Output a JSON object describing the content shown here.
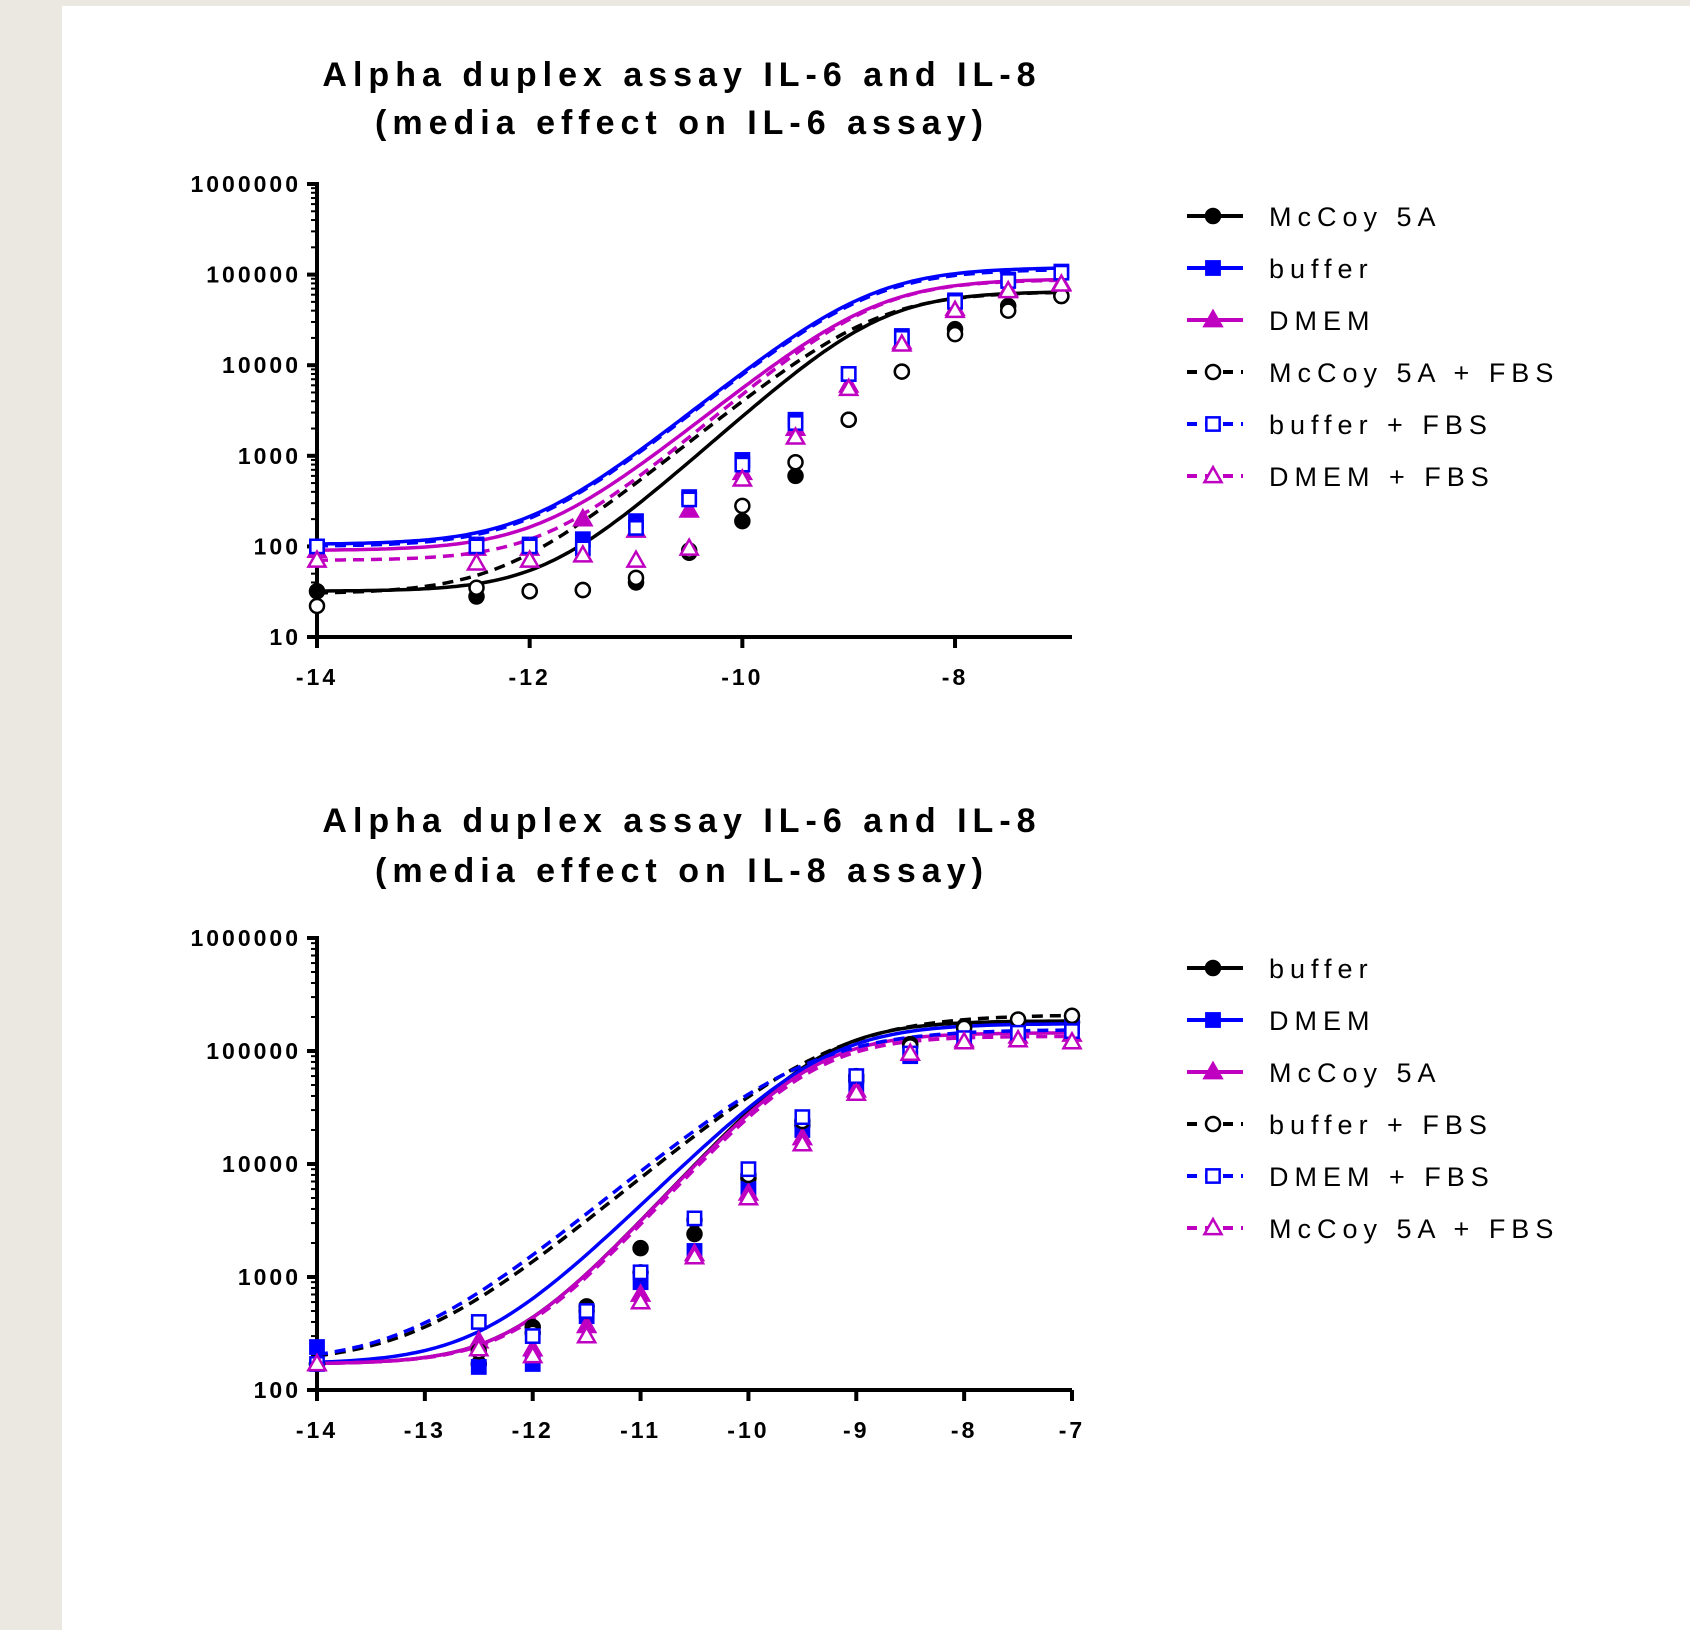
{
  "chart_data": [
    {
      "type": "line",
      "title_lines": [
        "Alpha duplex assay IL-6 and IL-8",
        "(media effect on IL-6 assay)"
      ],
      "xlabel": "",
      "ylabel": "",
      "y_scale": "log",
      "xlim": [
        -14,
        -6.9
      ],
      "ylim": [
        10,
        1000000
      ],
      "x_ticks": [
        -14,
        -12,
        -10,
        -8
      ],
      "x_tick_labels": [
        "-14",
        "-12",
        "-10",
        "-8"
      ],
      "y_ticks": [
        10,
        100,
        1000,
        10000,
        100000,
        1000000
      ],
      "y_tick_labels": [
        "10",
        "100",
        "1000",
        "10000",
        "100000",
        "1000000"
      ],
      "legend_position": "right",
      "x": [
        -14,
        -12.5,
        -12,
        -11.5,
        -11,
        -10.5,
        -10,
        -9.5,
        -9,
        -8.5,
        -8,
        -7.5,
        -7
      ],
      "series": [
        {
          "name": "McCoy 5A",
          "color": "#000000",
          "marker": "circle",
          "filled": true,
          "dashed": false,
          "values": [
            32,
            28,
            32,
            33,
            40,
            85,
            190,
            600,
            2500,
            8500,
            25000,
            45000,
            58000
          ],
          "fit": {
            "bottom": 32,
            "top": 65000,
            "logec50": -8.7,
            "hill": 1.05
          }
        },
        {
          "name": "buffer",
          "color": "#0000ff",
          "marker": "square",
          "filled": true,
          "dashed": false,
          "values": [
            100,
            105,
            105,
            120,
            190,
            350,
            900,
            2500,
            8000,
            21000,
            52000,
            88000,
            108000
          ],
          "fit": {
            "bottom": 105,
            "top": 120000,
            "logec50": -8.8,
            "hill": 0.95
          }
        },
        {
          "name": "DMEM",
          "color": "#c000c0",
          "marker": "triangle",
          "filled": true,
          "dashed": false,
          "values": [
            90,
            95,
            95,
            200,
            150,
            250,
            650,
            2000,
            6000,
            18000,
            42000,
            68000,
            80000
          ],
          "fit": {
            "bottom": 90,
            "top": 90000,
            "logec50": -8.75,
            "hill": 0.95
          }
        },
        {
          "name": "McCoy 5A + FBS",
          "color": "#000000",
          "marker": "circle",
          "filled": false,
          "dashed": true,
          "values": [
            22,
            35,
            32,
            33,
            45,
            90,
            280,
            850,
            2500,
            8500,
            22000,
            40000,
            58000
          ],
          "fit": {
            "bottom": 30,
            "top": 65000,
            "logec50": -8.75,
            "hill": 0.95
          }
        },
        {
          "name": "buffer + FBS",
          "color": "#0000ff",
          "marker": "square",
          "filled": false,
          "dashed": true,
          "values": [
            100,
            100,
            100,
            95,
            160,
            330,
            800,
            2300,
            8000,
            20000,
            50000,
            85000,
            105000
          ],
          "fit": {
            "bottom": 100,
            "top": 115000,
            "logec50": -8.8,
            "hill": 0.95
          }
        },
        {
          "name": "DMEM + FBS",
          "color": "#c000c0",
          "marker": "triangle",
          "filled": false,
          "dashed": true,
          "values": [
            70,
            65,
            70,
            80,
            70,
            95,
            550,
            1600,
            5500,
            17000,
            40000,
            66000,
            78000
          ],
          "fit": {
            "bottom": 70,
            "top": 88000,
            "logec50": -8.75,
            "hill": 1.0
          }
        }
      ]
    },
    {
      "type": "line",
      "title_lines": [
        "Alpha duplex assay IL-6 and IL-8",
        "(media effect on IL-8 assay)"
      ],
      "xlabel": "",
      "ylabel": "",
      "y_scale": "log",
      "xlim": [
        -14,
        -7
      ],
      "ylim": [
        100,
        1000000
      ],
      "x_ticks": [
        -14,
        -13,
        -12,
        -11,
        -10,
        -9,
        -8,
        -7
      ],
      "x_tick_labels": [
        "-14",
        "-13",
        "-12",
        "-11",
        "-10",
        "-9",
        "-8",
        "-7"
      ],
      "y_ticks": [
        100,
        1000,
        10000,
        100000,
        1000000
      ],
      "y_tick_labels": [
        "100",
        "1000",
        "10000",
        "100000",
        "1000000"
      ],
      "legend_position": "right",
      "x": [
        -14,
        -12.5,
        -12,
        -11.5,
        -11,
        -10.5,
        -10,
        -9.5,
        -9,
        -8.5,
        -8,
        -7.5,
        -7
      ],
      "series": [
        {
          "name": "buffer",
          "color": "#000000",
          "marker": "circle",
          "filled": true,
          "dashed": false,
          "values": [
            170,
            170,
            360,
            550,
            1800,
            2400,
            7500,
            22000,
            55000,
            115000,
            165000,
            180000,
            180000
          ],
          "fit": {
            "bottom": 170,
            "top": 185000,
            "logec50": -9.3,
            "hill": 1.05
          }
        },
        {
          "name": "DMEM",
          "color": "#0000ff",
          "marker": "square",
          "filled": true,
          "dashed": false,
          "values": [
            240,
            160,
            170,
            450,
            900,
            1700,
            6000,
            20000,
            50000,
            90000,
            145000,
            165000,
            165000
          ],
          "fit": {
            "bottom": 170,
            "top": 175000,
            "logec50": -9.3,
            "hill": 0.95
          }
        },
        {
          "name": "McCoy 5A",
          "color": "#c000c0",
          "marker": "triangle",
          "filled": true,
          "dashed": false,
          "values": [
            170,
            270,
            230,
            370,
            700,
            1600,
            5500,
            17000,
            45000,
            95000,
            125000,
            135000,
            140000
          ],
          "fit": {
            "bottom": 170,
            "top": 145000,
            "logec50": -9.4,
            "hill": 1.05
          }
        },
        {
          "name": "buffer + FBS",
          "color": "#000000",
          "marker": "circle",
          "filled": false,
          "dashed": true,
          "values": [
            170,
            220,
            320,
            500,
            1100,
            3200,
            8000,
            24000,
            60000,
            110000,
            160000,
            190000,
            205000
          ],
          "fit": {
            "bottom": 170,
            "top": 210000,
            "logec50": -9.2,
            "hill": 0.8
          }
        },
        {
          "name": "DMEM + FBS",
          "color": "#0000ff",
          "marker": "square",
          "filled": false,
          "dashed": true,
          "values": [
            170,
            400,
            300,
            500,
            1100,
            3300,
            9000,
            26000,
            60000,
            95000,
            130000,
            145000,
            150000
          ],
          "fit": {
            "bottom": 170,
            "top": 155000,
            "logec50": -9.45,
            "hill": 0.8
          }
        },
        {
          "name": "McCoy 5A + FBS",
          "color": "#c000c0",
          "marker": "triangle",
          "filled": false,
          "dashed": true,
          "values": [
            170,
            230,
            200,
            300,
            600,
            1500,
            5000,
            15000,
            42000,
            95000,
            120000,
            125000,
            120000
          ],
          "fit": {
            "bottom": 170,
            "top": 135000,
            "logec50": -9.4,
            "hill": 1.05
          }
        }
      ]
    }
  ]
}
